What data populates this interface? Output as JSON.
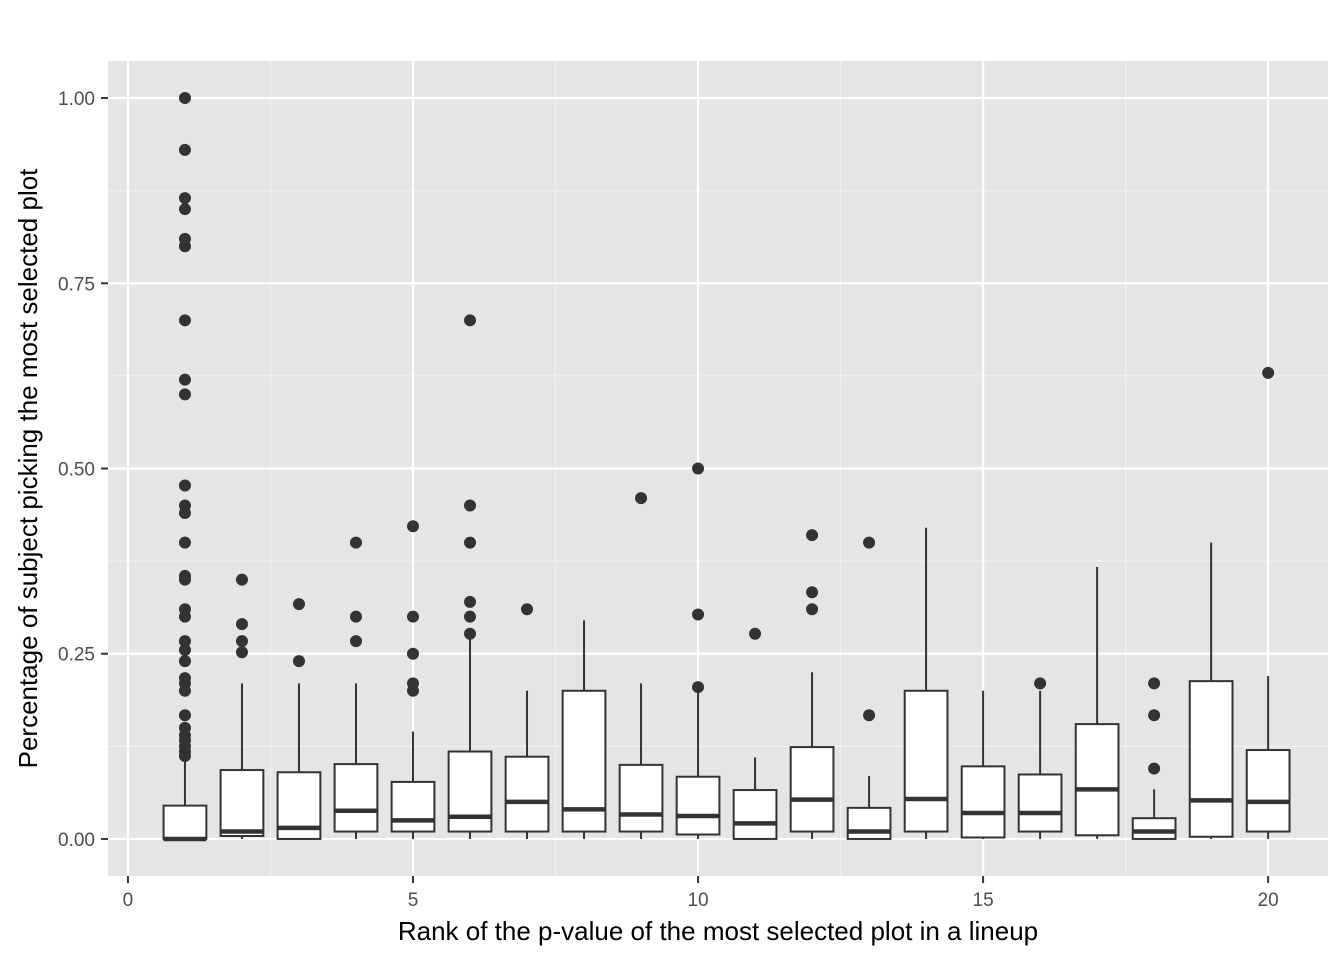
{
  "chart_data": {
    "type": "boxplot",
    "xlabel": "Rank of the p-value of the most selected plot in a lineup",
    "ylabel": "Percentage of subject picking the most selected plot",
    "xlim": [
      -0.35,
      21.05
    ],
    "ylim": [
      -0.05,
      1.05
    ],
    "x_ticks": [
      0,
      5,
      10,
      15,
      20
    ],
    "x_tick_labels": [
      "0",
      "5",
      "10",
      "15",
      "20"
    ],
    "y_ticks": [
      0,
      0.25,
      0.5,
      0.75,
      1.0
    ],
    "y_tick_labels": [
      "0.00",
      "0.25",
      "0.50",
      "0.75",
      "1.00"
    ],
    "grid": true,
    "legend": "none",
    "colors": {
      "panel_background": "#e5e5e5",
      "grid_major": "#ffffff",
      "grid_minor": "#f2f2f2",
      "box_fill": "#ffffff",
      "box_stroke": "#333333",
      "outlier": "#333333",
      "tick_text": "#4d4d4d",
      "tick_mark": "#333333"
    },
    "boxes": [
      {
        "x": 1,
        "min": 0.0,
        "q1": 0.0,
        "median": 0.0,
        "q3": 0.045,
        "max": 0.11,
        "outliers": [
          1.0,
          0.93,
          0.865,
          0.85,
          0.81,
          0.8,
          0.7,
          0.62,
          0.6,
          0.477,
          0.45,
          0.44,
          0.4,
          0.355,
          0.35,
          0.31,
          0.3,
          0.267,
          0.255,
          0.24,
          0.217,
          0.21,
          0.2,
          0.167,
          0.15,
          0.14,
          0.133,
          0.125,
          0.118,
          0.112
        ]
      },
      {
        "x": 2,
        "min": 0.0,
        "q1": 0.004,
        "median": 0.01,
        "q3": 0.093,
        "max": 0.21,
        "outliers": [
          0.35,
          0.29,
          0.267,
          0.252
        ]
      },
      {
        "x": 3,
        "min": 0.0,
        "q1": 0.0,
        "median": 0.015,
        "q3": 0.09,
        "max": 0.21,
        "outliers": [
          0.317,
          0.24
        ]
      },
      {
        "x": 4,
        "min": 0.0,
        "q1": 0.01,
        "median": 0.038,
        "q3": 0.101,
        "max": 0.21,
        "outliers": [
          0.4,
          0.3,
          0.267
        ]
      },
      {
        "x": 5,
        "min": 0.0,
        "q1": 0.01,
        "median": 0.025,
        "q3": 0.077,
        "max": 0.145,
        "outliers": [
          0.422,
          0.3,
          0.25,
          0.21,
          0.2
        ]
      },
      {
        "x": 6,
        "min": 0.0,
        "q1": 0.01,
        "median": 0.03,
        "q3": 0.118,
        "max": 0.273,
        "outliers": [
          0.7,
          0.45,
          0.4,
          0.32,
          0.3,
          0.277
        ]
      },
      {
        "x": 7,
        "min": 0.0,
        "q1": 0.01,
        "median": 0.05,
        "q3": 0.111,
        "max": 0.2,
        "outliers": [
          0.31
        ]
      },
      {
        "x": 8,
        "min": 0.0,
        "q1": 0.01,
        "median": 0.04,
        "q3": 0.2,
        "max": 0.295,
        "outliers": []
      },
      {
        "x": 9,
        "min": 0.0,
        "q1": 0.01,
        "median": 0.033,
        "q3": 0.1,
        "max": 0.21,
        "outliers": [
          0.46
        ]
      },
      {
        "x": 10,
        "min": 0.0,
        "q1": 0.006,
        "median": 0.031,
        "q3": 0.084,
        "max": 0.2,
        "outliers": [
          0.5,
          0.303,
          0.205
        ]
      },
      {
        "x": 11,
        "min": 0.0,
        "q1": 0.0,
        "median": 0.021,
        "q3": 0.066,
        "max": 0.11,
        "outliers": [
          0.277
        ]
      },
      {
        "x": 12,
        "min": 0.0,
        "q1": 0.01,
        "median": 0.053,
        "q3": 0.124,
        "max": 0.225,
        "outliers": [
          0.41,
          0.333,
          0.31
        ]
      },
      {
        "x": 13,
        "min": 0.0,
        "q1": 0.0,
        "median": 0.01,
        "q3": 0.042,
        "max": 0.085,
        "outliers": [
          0.4,
          0.167
        ]
      },
      {
        "x": 14,
        "min": 0.0,
        "q1": 0.01,
        "median": 0.054,
        "q3": 0.2,
        "max": 0.42,
        "outliers": []
      },
      {
        "x": 15,
        "min": 0.0,
        "q1": 0.002,
        "median": 0.035,
        "q3": 0.098,
        "max": 0.2,
        "outliers": []
      },
      {
        "x": 16,
        "min": 0.0,
        "q1": 0.01,
        "median": 0.035,
        "q3": 0.087,
        "max": 0.2,
        "outliers": [
          0.21
        ]
      },
      {
        "x": 17,
        "min": 0.0,
        "q1": 0.005,
        "median": 0.067,
        "q3": 0.155,
        "max": 0.367,
        "outliers": []
      },
      {
        "x": 18,
        "min": 0.0,
        "q1": 0.0,
        "median": 0.01,
        "q3": 0.028,
        "max": 0.067,
        "outliers": [
          0.21,
          0.167,
          0.095
        ]
      },
      {
        "x": 19,
        "min": 0.0,
        "q1": 0.003,
        "median": 0.052,
        "q3": 0.213,
        "max": 0.4,
        "outliers": []
      },
      {
        "x": 20,
        "min": 0.0,
        "q1": 0.01,
        "median": 0.05,
        "q3": 0.12,
        "max": 0.22,
        "outliers": [
          0.629
        ]
      }
    ]
  }
}
